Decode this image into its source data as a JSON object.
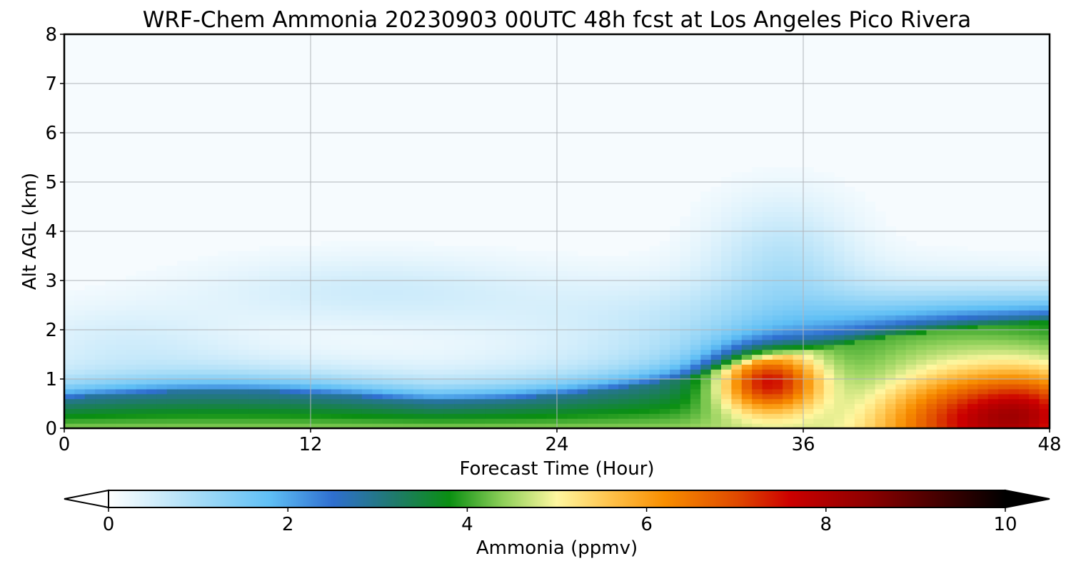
{
  "chart_data": {
    "type": "heatmap",
    "title": "WRF-Chem Ammonia  20230903 00UTC 48h fcst at Los Angeles Pico Rivera",
    "xlabel": "Forecast Time (Hour)",
    "ylabel": "Alt AGL (km)",
    "xlim": [
      0,
      48
    ],
    "ylim": [
      0,
      8
    ],
    "x_ticks": [
      "0",
      "12",
      "24",
      "36",
      "48"
    ],
    "y_ticks": [
      "0",
      "1",
      "2",
      "3",
      "4",
      "5",
      "6",
      "7",
      "8"
    ],
    "grid": true,
    "colorbar": {
      "label": "Ammonia  (ppmv)",
      "range": [
        0,
        10
      ],
      "ticks": [
        "0",
        "2",
        "4",
        "6",
        "8",
        "10"
      ],
      "extend": "both",
      "colors": [
        {
          "value": 0,
          "color": "#ffffff"
        },
        {
          "value": 1,
          "color": "#a6dcf7"
        },
        {
          "value": 1.8,
          "color": "#5fbff5"
        },
        {
          "value": 2.5,
          "color": "#2f6fd0"
        },
        {
          "value": 3.2,
          "color": "#1f7a6a"
        },
        {
          "value": 3.8,
          "color": "#0a8f12"
        },
        {
          "value": 4.4,
          "color": "#8fd05a"
        },
        {
          "value": 5,
          "color": "#fff7a0"
        },
        {
          "value": 5.6,
          "color": "#ffc24a"
        },
        {
          "value": 6.2,
          "color": "#f88e00"
        },
        {
          "value": 7,
          "color": "#e04a00"
        },
        {
          "value": 7.6,
          "color": "#cc0000"
        },
        {
          "value": 8.5,
          "color": "#8a0000"
        },
        {
          "value": 10,
          "color": "#000000"
        }
      ]
    },
    "features": [
      {
        "name": "surface layer",
        "x_range": [
          0,
          48
        ],
        "z_top_km": 0.7,
        "peak_ppmv": 4.8
      },
      {
        "name": "plume center",
        "x": 34,
        "z_km": 0.9,
        "peak_ppmv": 8.2
      },
      {
        "name": "late-period plume",
        "x": 44.5,
        "z_km": 0.2,
        "peak_ppmv": 7.2
      },
      {
        "name": "lofted layer",
        "x_range": [
          30,
          48
        ],
        "z_top_km": 4.5,
        "peak_ppmv": 1.0
      }
    ]
  }
}
